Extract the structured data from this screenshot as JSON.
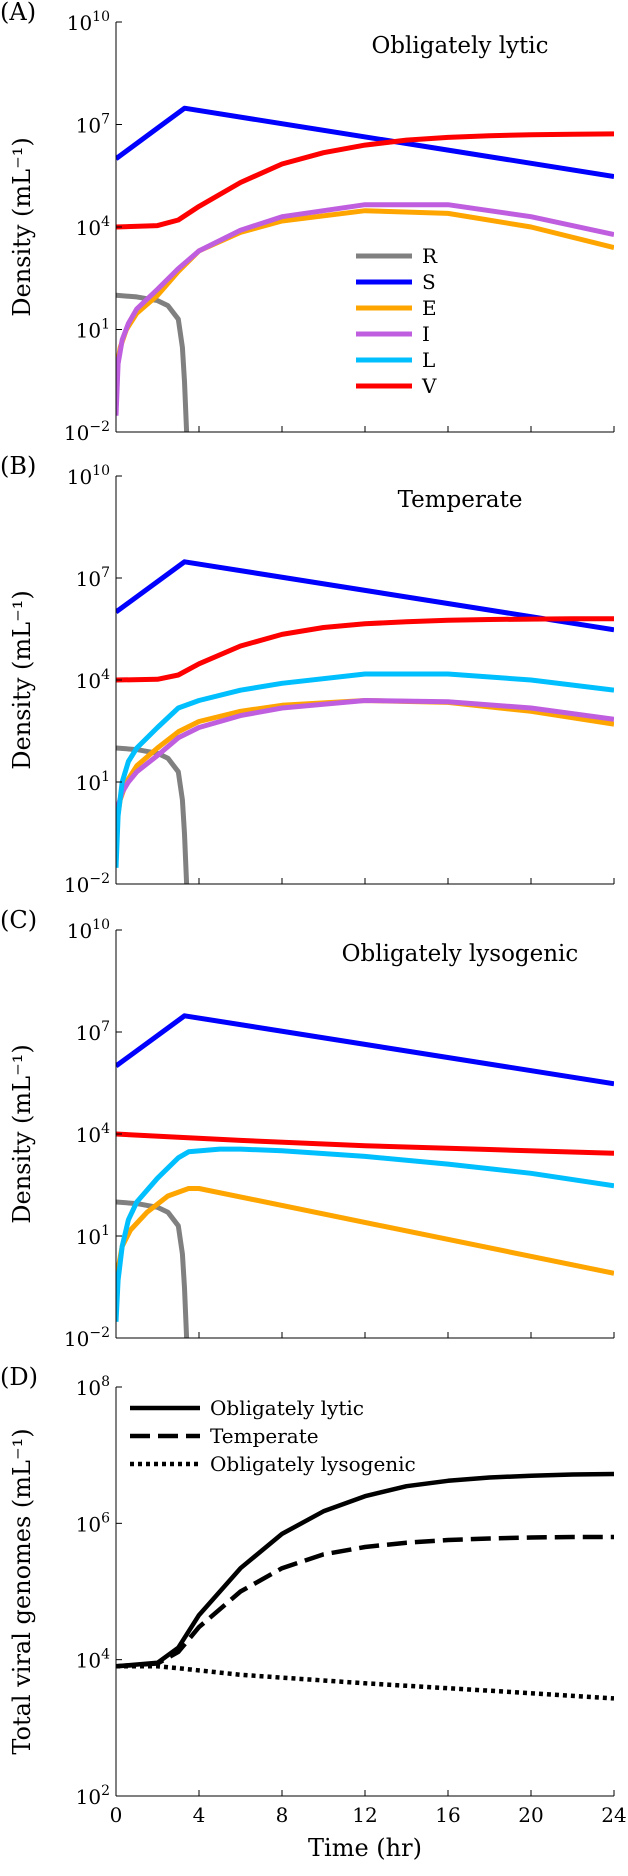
{
  "chart_data": [
    {
      "type": "line",
      "panel_label": "(A)",
      "title": "Obligately lytic",
      "ylabel": "Density (mL⁻¹)",
      "y_scale": "log",
      "ylim": [
        0.01,
        10000000000
      ],
      "xlim": [
        0,
        24
      ],
      "y_ticks": [
        {
          "base": "10",
          "exp": "10",
          "value": 10000000000
        },
        {
          "base": "10",
          "exp": "7",
          "value": 10000000
        },
        {
          "base": "10",
          "exp": "4",
          "value": 10000
        },
        {
          "base": "10",
          "exp": "1",
          "value": 10
        },
        {
          "base": "10",
          "exp": "−2",
          "value": 0.01
        }
      ],
      "legend": {
        "placement": "center",
        "entries": [
          "R",
          "S",
          "E",
          "I",
          "L",
          "V"
        ]
      },
      "series": [
        {
          "name": "R",
          "color": "#808080",
          "x": [
            0,
            1,
            2,
            2.5,
            3,
            3.2,
            3.3,
            3.4
          ],
          "y": [
            100,
            90,
            70,
            50,
            20,
            3,
            0.3,
            0.01
          ]
        },
        {
          "name": "S",
          "color": "#0000ff",
          "x": [
            0,
            3.3,
            24
          ],
          "y": [
            1000000,
            30000000,
            300000
          ]
        },
        {
          "name": "E",
          "color": "#ffa500",
          "x": [
            0,
            0.2,
            0.5,
            1,
            2,
            3,
            4,
            6,
            8,
            12,
            16,
            20,
            24
          ],
          "y": [
            0.5,
            3,
            10,
            30,
            100,
            500,
            2000,
            7000,
            15000,
            30000,
            25000,
            10000,
            2500
          ]
        },
        {
          "name": "I",
          "color": "#bf5fdf",
          "x": [
            0,
            0.1,
            0.3,
            0.6,
            1,
            2,
            3,
            4,
            6,
            8,
            12,
            16,
            20,
            24
          ],
          "y": [
            0.03,
            1,
            5,
            15,
            40,
            150,
            600,
            2000,
            8000,
            20000,
            45000,
            45000,
            20000,
            6000
          ]
        },
        {
          "name": "V",
          "color": "#ff0000",
          "x": [
            0,
            2,
            3,
            4,
            6,
            8,
            10,
            12,
            14,
            16,
            18,
            20,
            22,
            24
          ],
          "y": [
            10000,
            11000,
            16000,
            40000,
            200000,
            700000,
            1500000,
            2500000,
            3500000,
            4200000,
            4700000,
            5000000,
            5200000,
            5300000
          ]
        }
      ]
    },
    {
      "type": "line",
      "panel_label": "(B)",
      "title": "Temperate",
      "ylabel": "Density (mL⁻¹)",
      "y_scale": "log",
      "ylim": [
        0.01,
        10000000000
      ],
      "xlim": [
        0,
        24
      ],
      "y_ticks": [
        {
          "base": "10",
          "exp": "10",
          "value": 10000000000
        },
        {
          "base": "10",
          "exp": "7",
          "value": 10000000
        },
        {
          "base": "10",
          "exp": "4",
          "value": 10000
        },
        {
          "base": "10",
          "exp": "1",
          "value": 10
        },
        {
          "base": "10",
          "exp": "−2",
          "value": 0.01
        }
      ],
      "series": [
        {
          "name": "R",
          "color": "#808080",
          "x": [
            0,
            1,
            2,
            2.5,
            3,
            3.2,
            3.3,
            3.4
          ],
          "y": [
            100,
            90,
            70,
            50,
            20,
            3,
            0.3,
            0.01
          ]
        },
        {
          "name": "S",
          "color": "#0000ff",
          "x": [
            0,
            3.3,
            24
          ],
          "y": [
            1000000,
            30000000,
            300000
          ]
        },
        {
          "name": "E",
          "color": "#ffa500",
          "x": [
            0,
            0.2,
            0.5,
            1,
            2,
            3,
            4,
            6,
            8,
            12,
            16,
            20,
            24
          ],
          "y": [
            0.5,
            3,
            10,
            30,
            100,
            300,
            600,
            1200,
            1800,
            2500,
            2200,
            1200,
            500
          ]
        },
        {
          "name": "I",
          "color": "#bf5fdf",
          "x": [
            0,
            0.1,
            0.3,
            0.6,
            1,
            2,
            3,
            4,
            6,
            8,
            12,
            16,
            20,
            24
          ],
          "y": [
            0.5,
            2,
            5,
            10,
            20,
            60,
            200,
            400,
            900,
            1500,
            2500,
            2300,
            1500,
            700
          ]
        },
        {
          "name": "L",
          "color": "#00bfff",
          "x": [
            0,
            0.1,
            0.3,
            0.6,
            1,
            2,
            3,
            4,
            6,
            8,
            12,
            16,
            20,
            24
          ],
          "y": [
            0.03,
            1,
            10,
            40,
            100,
            400,
            1500,
            2500,
            5000,
            8000,
            15000,
            15000,
            10000,
            5000
          ]
        },
        {
          "name": "V",
          "color": "#ff0000",
          "x": [
            0,
            2,
            3,
            4,
            6,
            8,
            10,
            12,
            14,
            16,
            18,
            20,
            22,
            24
          ],
          "y": [
            10000,
            10500,
            14000,
            30000,
            100000,
            220000,
            350000,
            450000,
            520000,
            570000,
            600000,
            620000,
            630000,
            630000
          ]
        }
      ]
    },
    {
      "type": "line",
      "panel_label": "(C)",
      "title": "Obligately lysogenic",
      "ylabel": "Density (mL⁻¹)",
      "y_scale": "log",
      "ylim": [
        0.01,
        10000000000
      ],
      "xlim": [
        0,
        24
      ],
      "y_ticks": [
        {
          "base": "10",
          "exp": "10",
          "value": 10000000000
        },
        {
          "base": "10",
          "exp": "7",
          "value": 10000000
        },
        {
          "base": "10",
          "exp": "4",
          "value": 10000
        },
        {
          "base": "10",
          "exp": "1",
          "value": 10
        },
        {
          "base": "10",
          "exp": "−2",
          "value": 0.01
        }
      ],
      "series": [
        {
          "name": "R",
          "color": "#808080",
          "x": [
            0,
            1,
            2,
            2.5,
            3,
            3.2,
            3.3,
            3.4
          ],
          "y": [
            100,
            90,
            70,
            50,
            20,
            3,
            0.3,
            0.01
          ]
        },
        {
          "name": "S",
          "color": "#0000ff",
          "x": [
            0,
            3.3,
            24
          ],
          "y": [
            1000000,
            30000000,
            300000
          ]
        },
        {
          "name": "E",
          "color": "#ffa500",
          "x": [
            0,
            0.3,
            0.7,
            1.5,
            2.5,
            3.5,
            4,
            24
          ],
          "y": [
            0.5,
            5,
            15,
            50,
            150,
            250,
            250,
            0.8
          ]
        },
        {
          "name": "L",
          "color": "#00bfff",
          "x": [
            0,
            0.1,
            0.3,
            0.6,
            1,
            2,
            3,
            3.5,
            5,
            6,
            8,
            12,
            16,
            20,
            24
          ],
          "y": [
            0.03,
            0.5,
            5,
            30,
            100,
            500,
            2000,
            3000,
            3600,
            3600,
            3200,
            2200,
            1300,
            700,
            300
          ]
        },
        {
          "name": "V",
          "color": "#ff0000",
          "x": [
            0,
            3,
            6,
            12,
            18,
            24
          ],
          "y": [
            10000,
            8000,
            6500,
            4500,
            3500,
            2700
          ]
        }
      ]
    },
    {
      "type": "line",
      "panel_label": "(D)",
      "title": "",
      "xlabel": "Time (hr)",
      "ylabel": "Total viral genomes (mL⁻¹)",
      "y_scale": "log",
      "ylim": [
        100,
        100000000
      ],
      "xlim": [
        0,
        24
      ],
      "x_ticks": [
        "0",
        "4",
        "8",
        "12",
        "16",
        "20",
        "24"
      ],
      "x_tick_values": [
        0,
        4,
        8,
        12,
        16,
        20,
        24
      ],
      "y_ticks": [
        {
          "base": "10",
          "exp": "8",
          "value": 100000000
        },
        {
          "base": "10",
          "exp": "6",
          "value": 1000000
        },
        {
          "base": "10",
          "exp": "4",
          "value": 10000
        },
        {
          "base": "10",
          "exp": "2",
          "value": 100
        }
      ],
      "legend": {
        "placement": "top-left",
        "entries": [
          "Obligately lytic",
          "Temperate",
          "Obligately lysogenic"
        ]
      },
      "series": [
        {
          "name": "Obligately lytic",
          "color": "#000000",
          "dash": "solid",
          "x": [
            0,
            2,
            3,
            4,
            6,
            8,
            10,
            12,
            14,
            16,
            18,
            20,
            22,
            24
          ],
          "y": [
            8000,
            9000,
            15000,
            45000,
            220000,
            700000,
            1500000,
            2500000,
            3500000,
            4200000,
            4700000,
            5000000,
            5200000,
            5300000
          ]
        },
        {
          "name": "Temperate",
          "color": "#000000",
          "dash": "dashed",
          "x": [
            0,
            2,
            3,
            4,
            6,
            8,
            10,
            12,
            14,
            16,
            18,
            20,
            22,
            24
          ],
          "y": [
            8000,
            8800,
            13000,
            30000,
            100000,
            220000,
            350000,
            450000,
            520000,
            570000,
            600000,
            620000,
            630000,
            630000
          ]
        },
        {
          "name": "Obligately lysogenic",
          "color": "#000000",
          "dash": "dotted",
          "x": [
            0,
            2,
            3,
            6,
            12,
            18,
            24
          ],
          "y": [
            8000,
            8000,
            7500,
            6000,
            4500,
            3500,
            2700
          ]
        }
      ]
    }
  ]
}
